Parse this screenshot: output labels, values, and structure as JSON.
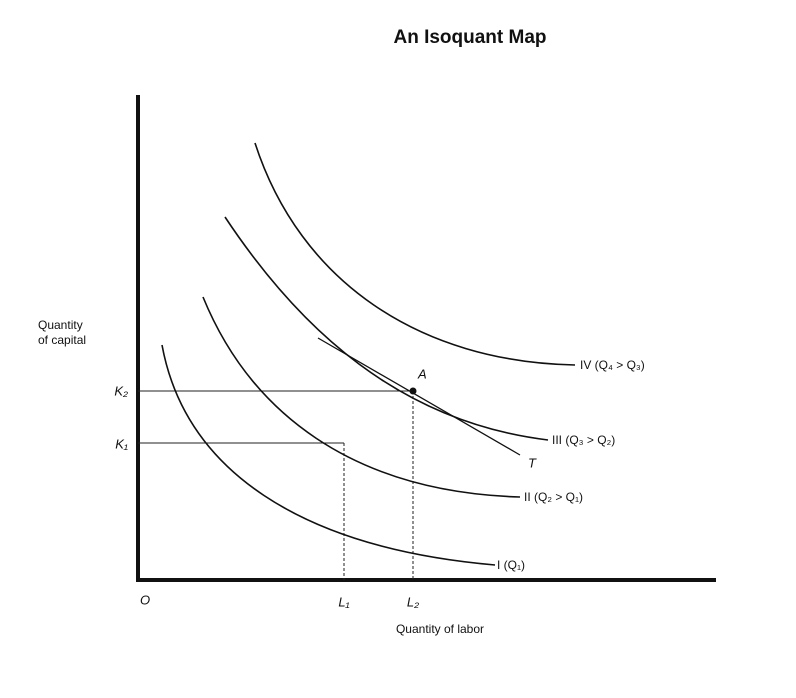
{
  "title": "An Isoquant Map",
  "axes": {
    "y_label": [
      "Quantity",
      "of capital"
    ],
    "x_label": "Quantity of labor",
    "origin": "O"
  },
  "ticks": {
    "x": [
      "L₁",
      "L₂"
    ],
    "y": [
      "K₁",
      "K₂"
    ]
  },
  "curves": [
    {
      "label": "I (Q₁)"
    },
    {
      "label": "II (Q₂ > Q₁)"
    },
    {
      "label": "III (Q₃ > Q₂)"
    },
    {
      "label": "IV (Q₄ > Q₃)"
    }
  ],
  "point": "A",
  "tangent": "T"
}
